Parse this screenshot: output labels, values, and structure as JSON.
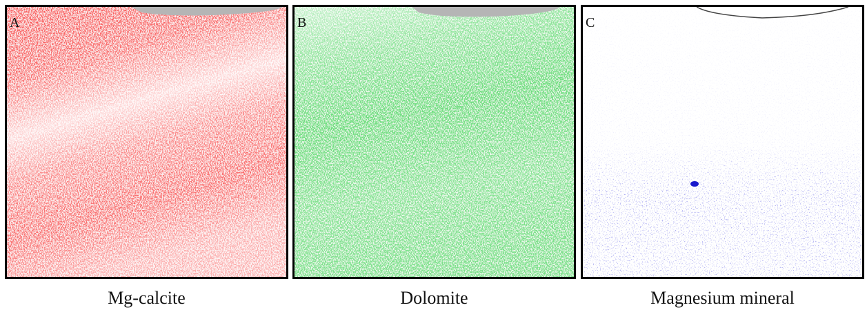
{
  "panels": [
    {
      "label": "A",
      "caption": "Mg-calcite"
    },
    {
      "label": "B",
      "caption": "Dolomite"
    },
    {
      "label": "C",
      "caption": "Magnesium mineral"
    }
  ]
}
